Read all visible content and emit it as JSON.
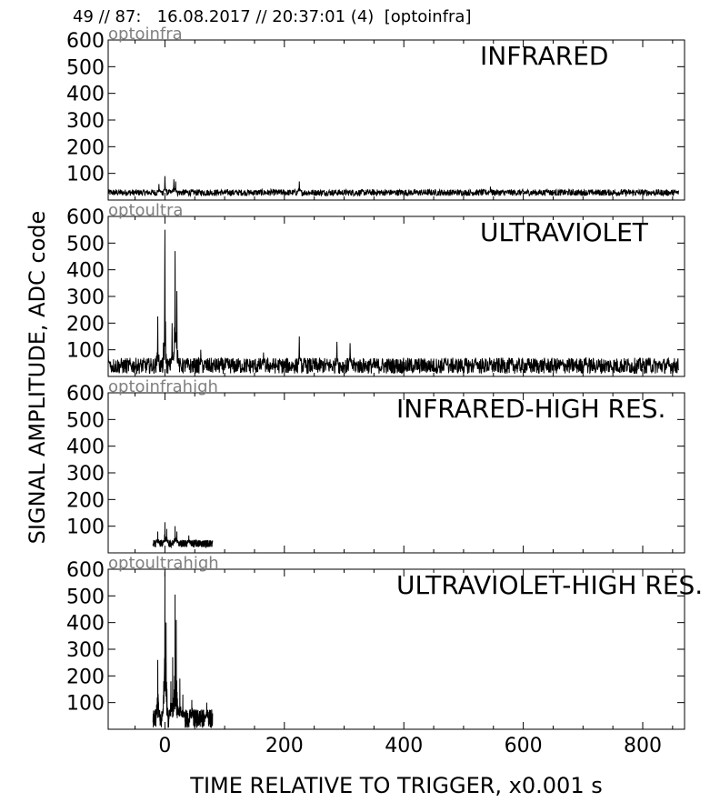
{
  "header": {
    "title": "49 // 87:   16.08.2017 // 20:37:01 (4)  [optoinfra]"
  },
  "chart_data": {
    "type": "line",
    "xlabel": "TIME RELATIVE TO TRIGGER,   x0.001 s",
    "ylabel": "SIGNAL AMPLITUDE,  ADC code",
    "xlim": [
      -95,
      870
    ],
    "ylim": [
      0,
      600
    ],
    "x_ticks": [
      0,
      200,
      400,
      600,
      800
    ],
    "y_ticks": [
      100,
      200,
      300,
      400,
      500,
      600
    ],
    "grid": false,
    "colors": {
      "line": "#000000",
      "tag": "#808080"
    },
    "panels": [
      {
        "tag": "optoinfra",
        "title": "INFRARED",
        "x_range": [
          -95,
          860
        ],
        "baseline": 28,
        "noise": 12,
        "peaks": [
          {
            "x": -10,
            "y": 60
          },
          {
            "x": 0,
            "y": 90
          },
          {
            "x": 15,
            "y": 78
          },
          {
            "x": 18,
            "y": 70
          },
          {
            "x": 225,
            "y": 70
          },
          {
            "x": 545,
            "y": 50
          },
          {
            "x": 640,
            "y": 42
          }
        ]
      },
      {
        "tag": "optoultra",
        "title": "ULTRAVIOLET",
        "x_range": [
          -95,
          860
        ],
        "baseline": 40,
        "noise": 30,
        "peaks": [
          {
            "x": -95,
            "y": 115
          },
          {
            "x": -12,
            "y": 225
          },
          {
            "x": 0,
            "y": 550
          },
          {
            "x": 12,
            "y": 200
          },
          {
            "x": 17,
            "y": 470
          },
          {
            "x": 20,
            "y": 320
          },
          {
            "x": 60,
            "y": 100
          },
          {
            "x": 165,
            "y": 90
          },
          {
            "x": 225,
            "y": 150
          },
          {
            "x": 288,
            "y": 130
          },
          {
            "x": 310,
            "y": 125
          },
          {
            "x": 470,
            "y": 70
          },
          {
            "x": 520,
            "y": 70
          },
          {
            "x": 705,
            "y": 72
          },
          {
            "x": 810,
            "y": 70
          }
        ]
      },
      {
        "tag": "optoinfrahigh",
        "title": "INFRARED-HIGH RES.",
        "x_range": [
          -20,
          80
        ],
        "baseline": 35,
        "noise": 14,
        "peaks": [
          {
            "x": -12,
            "y": 80
          },
          {
            "x": 0,
            "y": 115
          },
          {
            "x": 3,
            "y": 90
          },
          {
            "x": 17,
            "y": 100
          },
          {
            "x": 20,
            "y": 80
          },
          {
            "x": 40,
            "y": 65
          }
        ]
      },
      {
        "tag": "optoultrahigh",
        "title": "ULTRAVIOLET-HIGH RES.",
        "x_range": [
          -20,
          80
        ],
        "baseline": 40,
        "noise": 35,
        "peaks": [
          {
            "x": -12,
            "y": 260
          },
          {
            "x": -2,
            "y": 180
          },
          {
            "x": 0,
            "y": 590
          },
          {
            "x": 2,
            "y": 400
          },
          {
            "x": 10,
            "y": 180
          },
          {
            "x": 13,
            "y": 270
          },
          {
            "x": 17,
            "y": 505
          },
          {
            "x": 19,
            "y": 410
          },
          {
            "x": 25,
            "y": 190
          },
          {
            "x": 30,
            "y": 130
          },
          {
            "x": 45,
            "y": 110
          },
          {
            "x": 70,
            "y": 100
          }
        ]
      }
    ]
  }
}
